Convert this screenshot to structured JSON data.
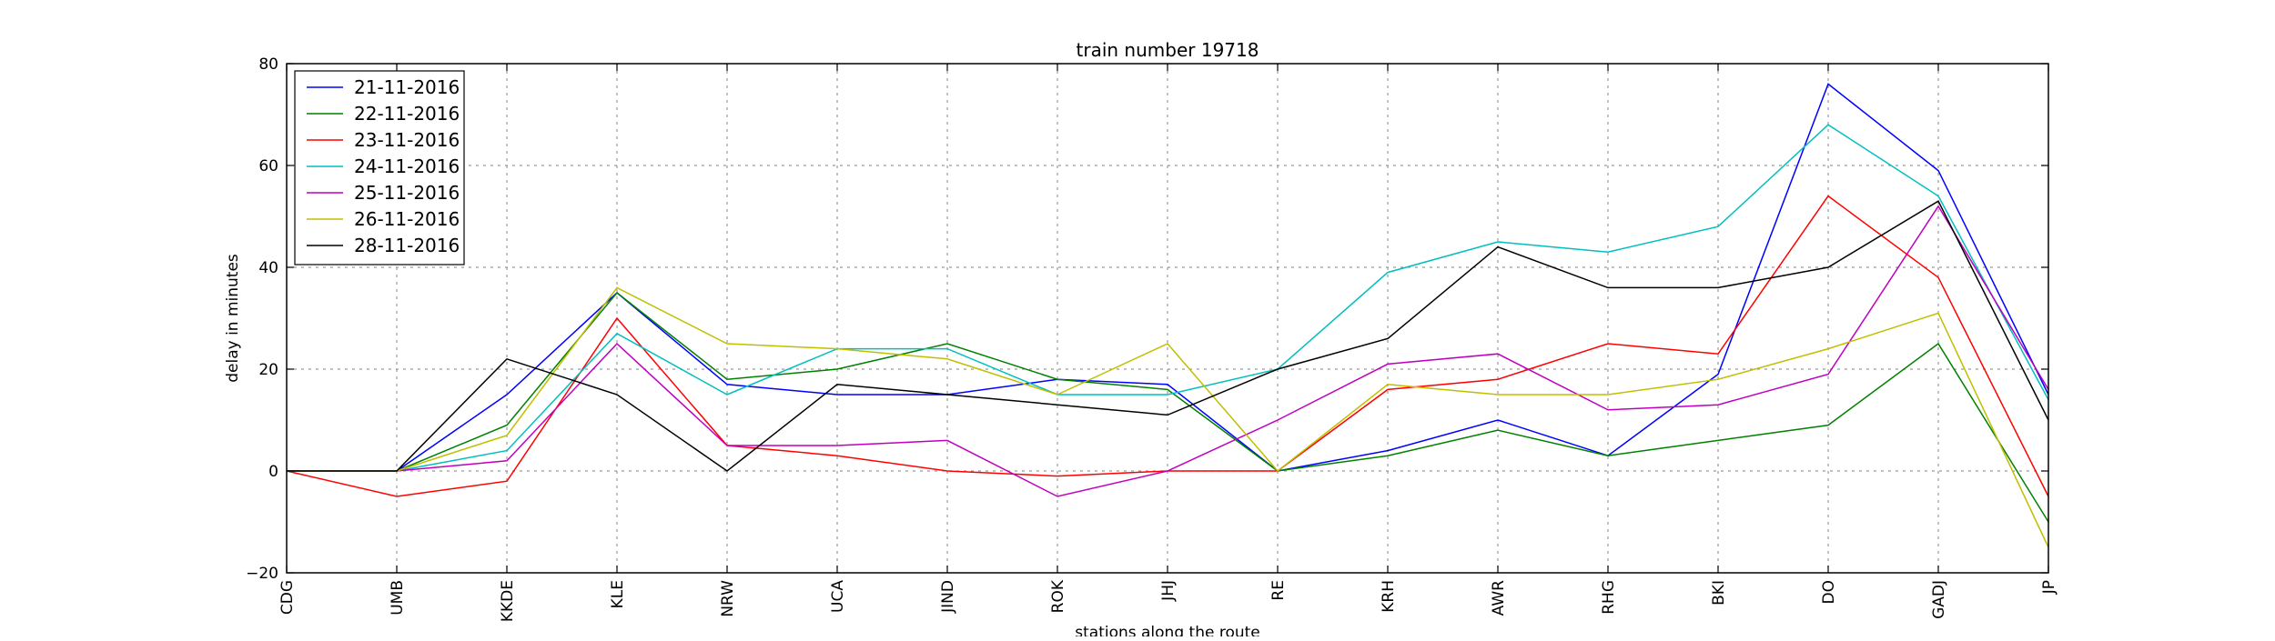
{
  "chart_data": {
    "type": "line",
    "title": "train number 19718",
    "xlabel": "stations along the route",
    "ylabel": "delay in minutes",
    "ylim": [
      -20,
      80
    ],
    "yticks": [
      -20,
      0,
      20,
      40,
      60,
      80
    ],
    "grid": true,
    "legend_position": "top-left",
    "categories": [
      "CDG",
      "UMB",
      "KKDE",
      "KLE",
      "NRW",
      "UCA",
      "JIND",
      "ROK",
      "JHJ",
      "RE",
      "KRH",
      "AWR",
      "RHG",
      "BKI",
      "DO",
      "GADJ",
      "JP"
    ],
    "series": [
      {
        "name": "21-11-2016",
        "color": "#0000ff",
        "values": [
          0,
          0,
          15,
          35,
          17,
          15,
          15,
          18,
          17,
          0,
          4,
          10,
          3,
          19,
          76,
          59,
          15
        ]
      },
      {
        "name": "22-11-2016",
        "color": "#008000",
        "values": [
          0,
          0,
          9,
          35,
          18,
          20,
          25,
          18,
          16,
          0,
          3,
          8,
          3,
          6,
          9,
          25,
          -10
        ]
      },
      {
        "name": "23-11-2016",
        "color": "#ff0000",
        "values": [
          0,
          -5,
          -2,
          30,
          5,
          3,
          0,
          -1,
          0,
          0,
          16,
          18,
          25,
          23,
          54,
          38,
          -5
        ]
      },
      {
        "name": "24-11-2016",
        "color": "#00bfbf",
        "values": [
          0,
          0,
          4,
          27,
          15,
          24,
          24,
          15,
          15,
          20,
          39,
          45,
          43,
          48,
          68,
          54,
          14
        ]
      },
      {
        "name": "25-11-2016",
        "color": "#bf00bf",
        "values": [
          0,
          0,
          2,
          25,
          5,
          5,
          6,
          -5,
          0,
          10,
          21,
          23,
          12,
          13,
          19,
          52,
          16
        ]
      },
      {
        "name": "26-11-2016",
        "color": "#bfbf00",
        "values": [
          0,
          0,
          7,
          36,
          25,
          24,
          22,
          15,
          25,
          0,
          17,
          15,
          15,
          18,
          24,
          31,
          -15
        ]
      },
      {
        "name": "28-11-2016",
        "color": "#000000",
        "values": [
          0,
          0,
          22,
          15,
          0,
          17,
          15,
          13,
          11,
          20,
          26,
          44,
          36,
          36,
          40,
          53,
          10
        ]
      }
    ]
  }
}
